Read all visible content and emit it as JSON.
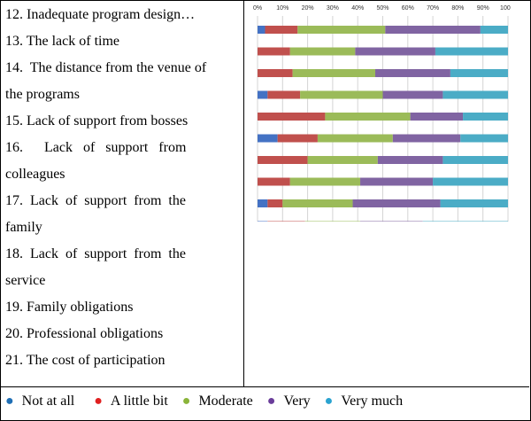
{
  "items": [
    {
      "lines": [
        "12. Inadequate program design…"
      ]
    },
    {
      "lines": [
        "13. The lack of time"
      ]
    },
    {
      "lines": [
        "14.  The distance from the venue of",
        "the programs"
      ]
    },
    {
      "lines": [
        "15.  Lack of support from bosses"
      ]
    },
    {
      "lines": [
        "16.      Lack   of   support   from",
        "colleagues"
      ]
    },
    {
      "lines": [
        "17.  Lack  of  support  from  the",
        "family"
      ]
    },
    {
      "lines": [
        "18.  Lack  of  support  from  the",
        "service"
      ]
    },
    {
      "lines": [
        "19. Family obligations"
      ]
    },
    {
      "lines": [
        "20. Professional obligations"
      ]
    },
    {
      "lines": [
        "21. The cost of participation"
      ]
    }
  ],
  "legend": [
    {
      "label": "Not at all",
      "color": "#1f6fb5"
    },
    {
      "label": "A little bit",
      "color": "#e02020"
    },
    {
      "label": "Moderate",
      "color": "#8ab43a"
    },
    {
      "label": "Very",
      "color": "#6a3d9a"
    },
    {
      "label": "Very much",
      "color": "#2aa3d0"
    }
  ],
  "chart_data": {
    "type": "bar",
    "orientation": "horizontal",
    "stacked": true,
    "percent": true,
    "xlim": [
      0,
      100
    ],
    "x_ticks": [
      "0%",
      "10%",
      "20%",
      "30%",
      "40%",
      "50%",
      "60%",
      "70%",
      "80%",
      "90%",
      "100%"
    ],
    "grid": true,
    "series": [
      {
        "name": "Not at all",
        "color": "#4472c4",
        "values": [
          3,
          0,
          0,
          4,
          0,
          8,
          0,
          0,
          4,
          4
        ]
      },
      {
        "name": "A little bit",
        "color": "#c0504d",
        "values": [
          13,
          13,
          14,
          13,
          27,
          16,
          20,
          13,
          6,
          15
        ]
      },
      {
        "name": "Moderate",
        "color": "#9bbb59",
        "values": [
          35,
          26,
          33,
          33,
          34,
          30,
          28,
          28,
          28,
          22
        ]
      },
      {
        "name": "Very",
        "color": "#8064a2",
        "values": [
          38,
          32,
          30,
          24,
          21,
          27,
          26,
          29,
          35,
          25
        ]
      },
      {
        "name": "Very much",
        "color": "#4bacc6",
        "values": [
          11,
          29,
          23,
          26,
          18,
          19,
          26,
          30,
          27,
          34
        ]
      }
    ]
  }
}
